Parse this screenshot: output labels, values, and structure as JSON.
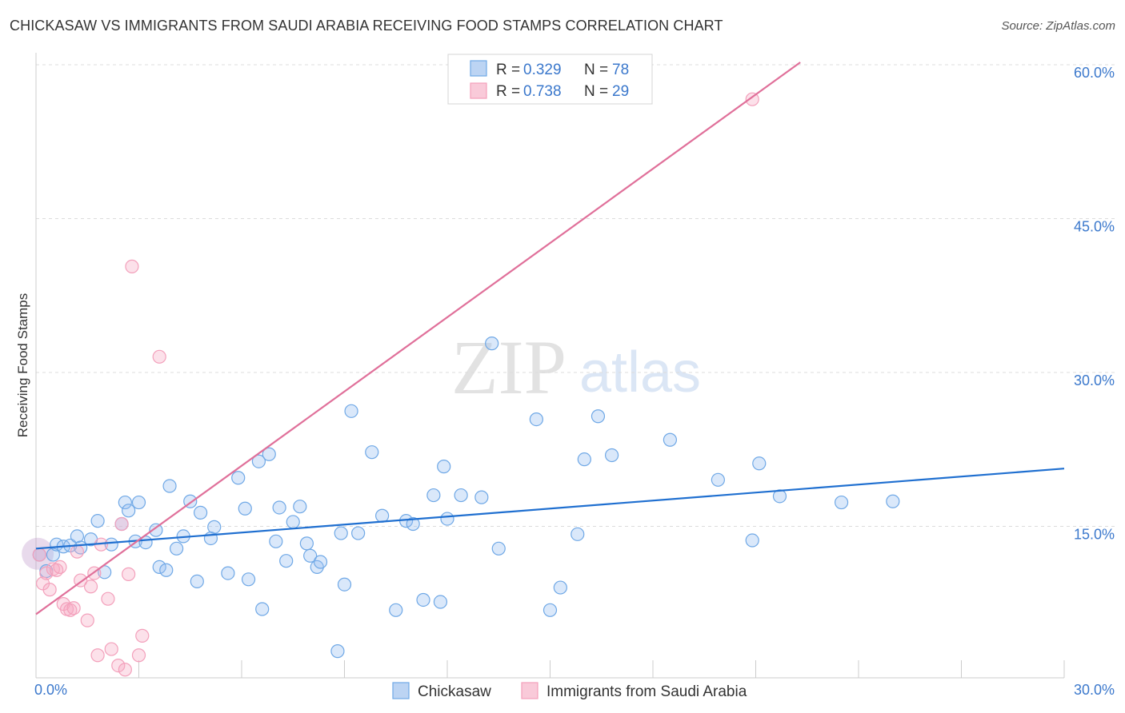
{
  "title": "CHICKASAW VS IMMIGRANTS FROM SAUDI ARABIA RECEIVING FOOD STAMPS CORRELATION CHART",
  "source": "Source: ZipAtlas.com",
  "watermark": {
    "zip": "ZIP",
    "atlas": "atlas"
  },
  "colors": {
    "blue": "#6fa8e6",
    "blue_line": "#1f6fd0",
    "pink": "#f3a0bb",
    "pink_line": "#e0709a",
    "axis_label": "#3b78cc"
  },
  "stats_legend": {
    "rows": [
      {
        "r_label": "R =",
        "r_value": "0.329",
        "n_label": "N =",
        "n_value": "78"
      },
      {
        "r_label": "R =",
        "r_value": "0.738",
        "n_label": "N =",
        "n_value": "29"
      }
    ]
  },
  "chart_data": {
    "type": "scatter",
    "xlabel": "",
    "ylabel": "Receiving Food Stamps",
    "xlim": [
      0,
      30
    ],
    "ylim": [
      0,
      60
    ],
    "x_tick_labels": [
      "0.0%",
      "30.0%"
    ],
    "y_ticks": [
      15,
      30,
      45,
      60
    ],
    "y_tick_labels": [
      "15.0%",
      "30.0%",
      "45.0%",
      "60.0%"
    ],
    "grid": true,
    "legend_position": "bottom",
    "series": [
      {
        "name": "Chickasaw",
        "trend": {
          "x": [
            0,
            30
          ],
          "y": [
            12.6,
            20.4
          ]
        },
        "points": [
          [
            0.1,
            12.0
          ],
          [
            0.3,
            10.4
          ],
          [
            0.5,
            12.0
          ],
          [
            0.6,
            13.0
          ],
          [
            0.8,
            12.8
          ],
          [
            1.0,
            12.9
          ],
          [
            1.2,
            13.8
          ],
          [
            1.3,
            12.7
          ],
          [
            1.6,
            13.5
          ],
          [
            1.8,
            15.3
          ],
          [
            2.0,
            10.3
          ],
          [
            2.2,
            13.0
          ],
          [
            2.5,
            15.0
          ],
          [
            2.6,
            17.1
          ],
          [
            2.7,
            16.3
          ],
          [
            2.9,
            13.3
          ],
          [
            3.0,
            17.1
          ],
          [
            3.2,
            13.2
          ],
          [
            3.5,
            14.4
          ],
          [
            3.6,
            10.8
          ],
          [
            3.8,
            10.5
          ],
          [
            3.9,
            18.7
          ],
          [
            4.1,
            12.6
          ],
          [
            4.3,
            13.8
          ],
          [
            4.5,
            17.2
          ],
          [
            4.7,
            9.4
          ],
          [
            4.8,
            16.1
          ],
          [
            5.1,
            13.6
          ],
          [
            5.2,
            14.7
          ],
          [
            5.6,
            10.2
          ],
          [
            5.9,
            19.5
          ],
          [
            6.1,
            16.5
          ],
          [
            6.2,
            9.6
          ],
          [
            6.5,
            21.1
          ],
          [
            6.6,
            6.7
          ],
          [
            6.8,
            21.8
          ],
          [
            7.0,
            13.3
          ],
          [
            7.1,
            16.6
          ],
          [
            7.3,
            11.4
          ],
          [
            7.5,
            15.2
          ],
          [
            7.7,
            16.7
          ],
          [
            7.9,
            13.1
          ],
          [
            8.0,
            11.9
          ],
          [
            8.2,
            10.8
          ],
          [
            8.3,
            11.3
          ],
          [
            8.8,
            2.6
          ],
          [
            8.9,
            14.1
          ],
          [
            9.0,
            9.1
          ],
          [
            9.2,
            26.0
          ],
          [
            9.4,
            14.1
          ],
          [
            9.8,
            22.0
          ],
          [
            10.1,
            15.8
          ],
          [
            10.5,
            6.6
          ],
          [
            10.8,
            15.3
          ],
          [
            11.0,
            15.0
          ],
          [
            11.3,
            7.6
          ],
          [
            11.6,
            17.8
          ],
          [
            11.8,
            7.4
          ],
          [
            11.9,
            20.6
          ],
          [
            12.0,
            15.5
          ],
          [
            12.4,
            17.8
          ],
          [
            13.0,
            17.6
          ],
          [
            13.3,
            32.6
          ],
          [
            13.5,
            12.6
          ],
          [
            14.6,
            25.2
          ],
          [
            15.0,
            6.6
          ],
          [
            15.3,
            8.8
          ],
          [
            15.8,
            14.0
          ],
          [
            16.0,
            21.3
          ],
          [
            16.4,
            25.5
          ],
          [
            16.8,
            21.7
          ],
          [
            18.5,
            23.2
          ],
          [
            19.9,
            19.3
          ],
          [
            20.9,
            13.4
          ],
          [
            21.1,
            20.9
          ],
          [
            21.7,
            17.7
          ],
          [
            23.5,
            17.1
          ],
          [
            25.0,
            17.2
          ]
        ]
      },
      {
        "name": "Immigrants from Saudi Arabia",
        "trend": {
          "x": [
            0,
            22.3
          ],
          "y": [
            6.2,
            60.0
          ]
        },
        "points": [
          [
            0.1,
            12.0
          ],
          [
            0.2,
            9.2
          ],
          [
            0.3,
            10.2
          ],
          [
            0.4,
            8.6
          ],
          [
            0.5,
            10.6
          ],
          [
            0.6,
            10.5
          ],
          [
            0.7,
            10.8
          ],
          [
            0.8,
            7.2
          ],
          [
            0.9,
            6.7
          ],
          [
            1.0,
            6.6
          ],
          [
            1.1,
            6.8
          ],
          [
            1.2,
            12.3
          ],
          [
            1.3,
            9.5
          ],
          [
            1.5,
            5.6
          ],
          [
            1.6,
            8.9
          ],
          [
            1.7,
            10.2
          ],
          [
            1.8,
            2.2
          ],
          [
            1.9,
            13.0
          ],
          [
            2.1,
            7.7
          ],
          [
            2.2,
            2.8
          ],
          [
            2.4,
            1.2
          ],
          [
            2.5,
            15.0
          ],
          [
            2.6,
            0.8
          ],
          [
            2.7,
            10.1
          ],
          [
            2.8,
            40.1
          ],
          [
            3.0,
            2.2
          ],
          [
            3.1,
            4.1
          ],
          [
            3.6,
            31.3
          ],
          [
            20.9,
            56.4
          ]
        ]
      }
    ]
  }
}
